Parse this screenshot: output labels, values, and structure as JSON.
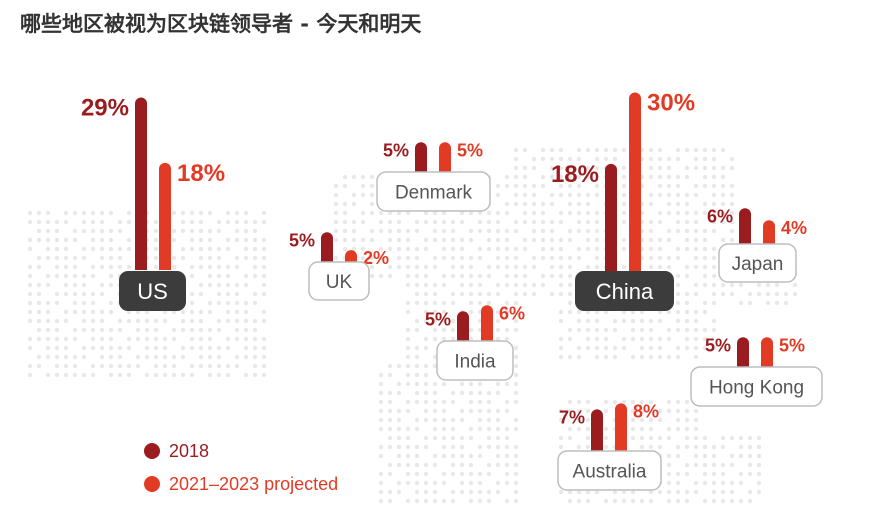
{
  "title": "哪些地区被视为区块链领导者 - 今天和明天",
  "colors": {
    "series_2018": "#9b1c1f",
    "series_projected": "#e23b25",
    "highlight_label_bg": "#3c3c3c",
    "label_border": "#bdbdbd",
    "map_dots": "#e8e8e8"
  },
  "chart_data": {
    "type": "bar",
    "unit": "%",
    "series": [
      {
        "name": "2018",
        "color": "#9b1c1f"
      },
      {
        "name": "2021–2023 projected",
        "color": "#e23b25"
      }
    ],
    "regions": [
      {
        "name": "US",
        "highlight": true,
        "values": [
          29,
          18
        ],
        "labels": [
          "29%",
          "18%"
        ]
      },
      {
        "name": "UK",
        "highlight": false,
        "values": [
          5,
          2
        ],
        "labels": [
          "5%",
          "2%"
        ]
      },
      {
        "name": "Denmark",
        "highlight": false,
        "values": [
          5,
          5
        ],
        "labels": [
          "5%",
          "5%"
        ]
      },
      {
        "name": "India",
        "highlight": false,
        "values": [
          5,
          6
        ],
        "labels": [
          "5%",
          "6%"
        ]
      },
      {
        "name": "China",
        "highlight": true,
        "values": [
          18,
          30
        ],
        "labels": [
          "18%",
          "30%"
        ]
      },
      {
        "name": "Japan",
        "highlight": false,
        "values": [
          6,
          4
        ],
        "labels": [
          "6%",
          "4%"
        ]
      },
      {
        "name": "Hong Kong",
        "highlight": false,
        "values": [
          5,
          5
        ],
        "labels": [
          "5%",
          "5%"
        ]
      },
      {
        "name": "Australia",
        "highlight": false,
        "values": [
          7,
          8
        ],
        "labels": [
          "7%",
          "8%"
        ]
      }
    ],
    "legend": {
      "placement": "bottom-left",
      "entries": [
        "2018",
        "2021–2023 projected"
      ]
    }
  }
}
